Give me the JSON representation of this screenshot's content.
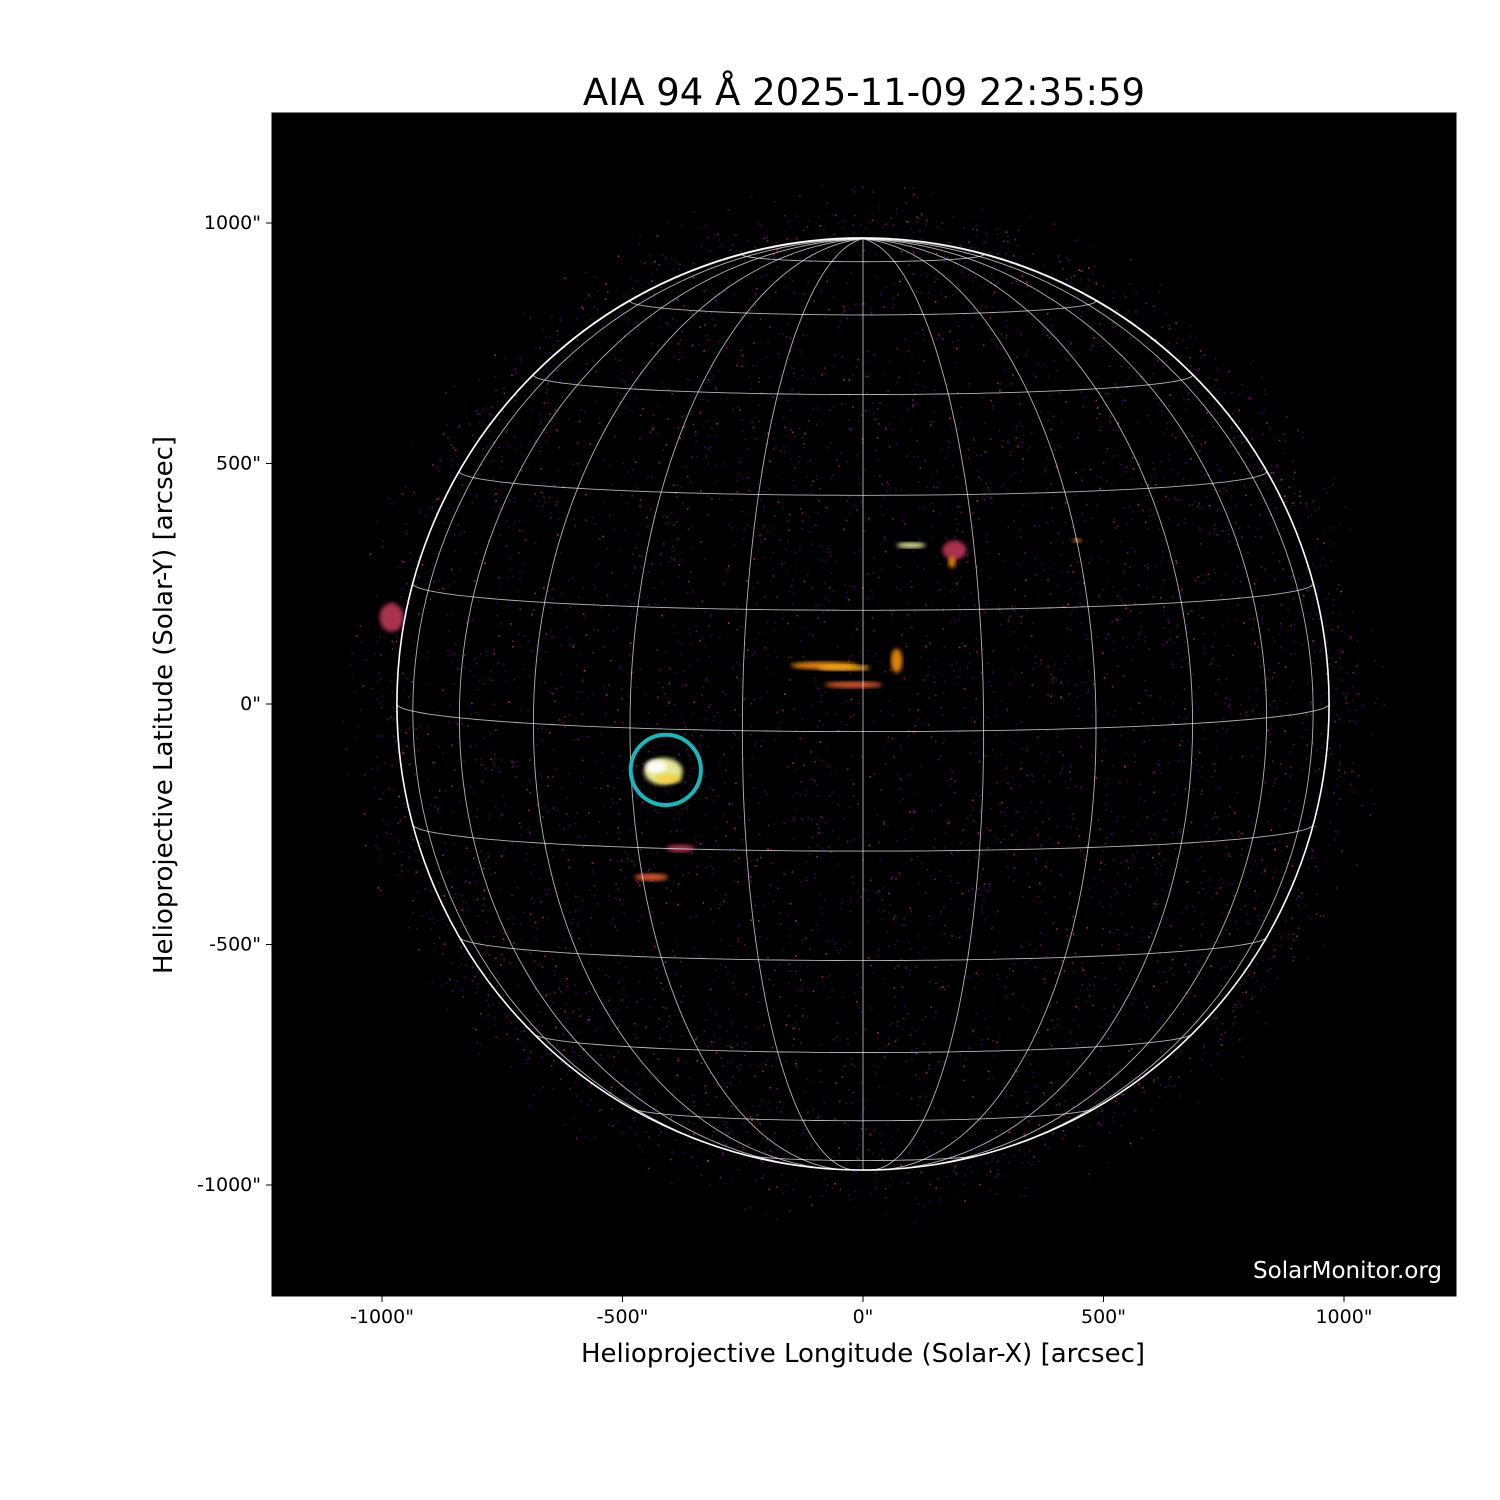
{
  "chart_data": {
    "type": "heatmap",
    "title": "AIA 94 Å 2025-11-09 22:35:59",
    "xlabel": "Helioprojective Longitude (Solar-X) [arcsec]",
    "ylabel": "Helioprojective Latitude (Solar-Y) [arcsec]",
    "xlim": [
      -1230,
      1230
    ],
    "ylim": [
      -1230,
      1230
    ],
    "xticks": [
      {
        "value": -1000,
        "label": "-1000\""
      },
      {
        "value": -500,
        "label": "-500\""
      },
      {
        "value": 0,
        "label": "0\""
      },
      {
        "value": 500,
        "label": "500\""
      },
      {
        "value": 1000,
        "label": "1000\""
      }
    ],
    "yticks": [
      {
        "value": 1000,
        "label": "1000\""
      },
      {
        "value": 500,
        "label": "500\""
      },
      {
        "value": 0,
        "label": "0\""
      },
      {
        "value": -500,
        "label": "-500\""
      },
      {
        "value": -1000,
        "label": "-1000\""
      }
    ],
    "colormap": "inferno",
    "background_color": "#000000",
    "solar_radius_arcsec": 969,
    "grid": {
      "on": true,
      "spacing_deg": 15,
      "color": "#ffffff"
    },
    "annotation_circle": {
      "x": -410,
      "y": -137,
      "radius": 73,
      "color": "#17b8bd"
    },
    "watermark": "SolarMonitor.org"
  }
}
